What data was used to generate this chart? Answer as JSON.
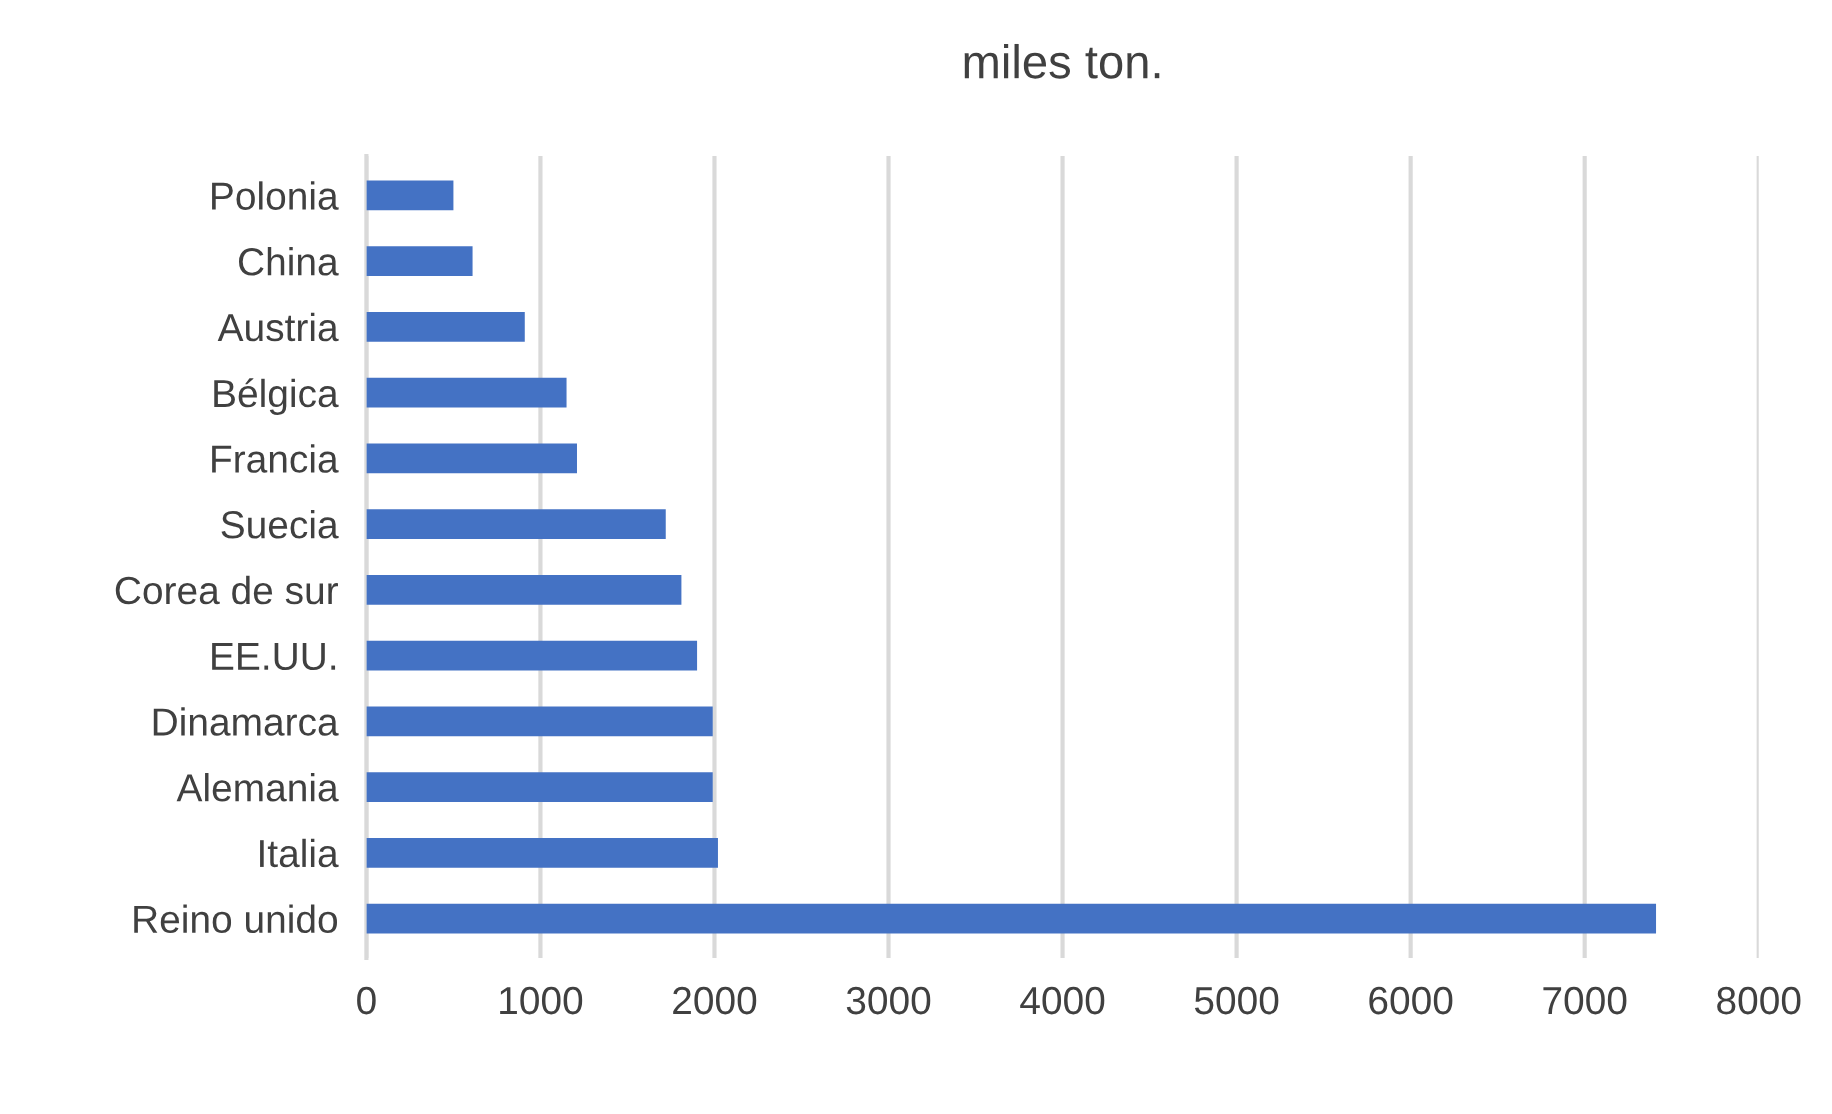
{
  "chart_data": {
    "type": "bar",
    "orientation": "horizontal",
    "title": "miles ton.",
    "categories": [
      "Polonia",
      "China",
      "Austria",
      "Bélgica",
      "Francia",
      "Suecia",
      "Corea de sur",
      "EE.UU.",
      "Dinamarca",
      "Alemania",
      "Italia",
      "Reino unido"
    ],
    "values": [
      500,
      610,
      910,
      1150,
      1210,
      1720,
      1810,
      1900,
      1990,
      1990,
      2020,
      7410
    ],
    "color": "#4472c4",
    "xlim": [
      0,
      8000
    ],
    "xticks": [
      0,
      1000,
      2000,
      3000,
      4000,
      5000,
      6000,
      7000,
      8000
    ],
    "grid": "x"
  }
}
